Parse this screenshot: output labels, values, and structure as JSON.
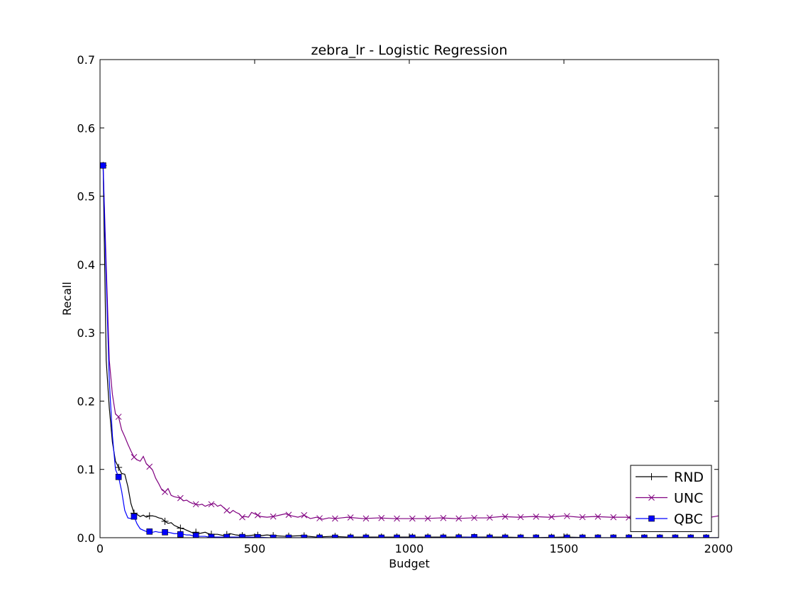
{
  "chart_data": {
    "type": "line",
    "title": "zebra_lr - Logistic Regression",
    "xlabel": "Budget",
    "ylabel": "Recall",
    "xlim": [
      0,
      2000
    ],
    "ylim": [
      0,
      0.7
    ],
    "x_ticks": [
      "0",
      "500",
      "1000",
      "1500",
      "2000"
    ],
    "y_ticks": [
      "0.0",
      "0.1",
      "0.2",
      "0.3",
      "0.4",
      "0.5",
      "0.6",
      "0.7"
    ],
    "grid": false,
    "legend_position": "lower-right",
    "series": [
      {
        "name": "RND",
        "color": "#000000",
        "marker": "plus",
        "x": [
          10,
          20,
          30,
          40,
          50,
          60,
          70,
          80,
          90,
          100,
          110,
          120,
          130,
          140,
          150,
          160,
          170,
          180,
          190,
          200,
          210,
          220,
          230,
          240,
          250,
          260,
          270,
          280,
          290,
          300,
          310,
          320,
          330,
          340,
          350,
          360,
          380,
          400,
          420,
          440,
          460,
          480,
          500,
          520,
          540,
          560,
          600,
          650,
          700,
          750,
          800,
          900,
          1000,
          1100,
          1200,
          1300,
          1400,
          1500,
          1600,
          1700,
          1800,
          1900,
          2000
        ],
        "values": [
          0.545,
          0.26,
          0.19,
          0.14,
          0.112,
          0.103,
          0.094,
          0.093,
          0.075,
          0.05,
          0.036,
          0.034,
          0.031,
          0.033,
          0.03,
          0.032,
          0.032,
          0.031,
          0.029,
          0.028,
          0.024,
          0.021,
          0.022,
          0.018,
          0.016,
          0.014,
          0.013,
          0.011,
          0.009,
          0.007,
          0.008,
          0.006,
          0.007,
          0.008,
          0.006,
          0.005,
          0.005,
          0.003,
          0.006,
          0.004,
          0.003,
          0.003,
          0.004,
          0.003,
          0.004,
          0.003,
          0.002,
          0.003,
          0.001,
          0.002,
          0.001,
          0.001,
          0.001,
          0.001,
          0.001,
          0.001,
          0.0,
          0.001,
          0.0,
          0.0,
          0.0,
          0.0,
          0.0
        ]
      },
      {
        "name": "UNC",
        "color": "#800080",
        "marker": "x",
        "x": [
          10,
          20,
          30,
          40,
          50,
          60,
          70,
          80,
          90,
          100,
          110,
          120,
          130,
          140,
          150,
          160,
          170,
          180,
          190,
          200,
          210,
          220,
          230,
          240,
          250,
          260,
          270,
          280,
          290,
          300,
          310,
          320,
          330,
          340,
          350,
          360,
          370,
          380,
          390,
          400,
          410,
          420,
          430,
          440,
          450,
          460,
          470,
          480,
          490,
          500,
          520,
          540,
          560,
          580,
          600,
          620,
          640,
          660,
          680,
          700,
          720,
          740,
          760,
          780,
          800,
          850,
          900,
          950,
          1000,
          1050,
          1100,
          1150,
          1200,
          1250,
          1300,
          1350,
          1400,
          1450,
          1500,
          1550,
          1600,
          1650,
          1700,
          1750,
          1800,
          1850,
          1900,
          1950,
          2000
        ],
        "values": [
          0.545,
          0.4,
          0.26,
          0.21,
          0.181,
          0.177,
          0.158,
          0.148,
          0.137,
          0.127,
          0.118,
          0.114,
          0.112,
          0.119,
          0.108,
          0.104,
          0.099,
          0.087,
          0.079,
          0.07,
          0.067,
          0.072,
          0.062,
          0.06,
          0.059,
          0.058,
          0.054,
          0.055,
          0.052,
          0.05,
          0.049,
          0.048,
          0.049,
          0.046,
          0.048,
          0.049,
          0.05,
          0.046,
          0.048,
          0.044,
          0.04,
          0.036,
          0.04,
          0.037,
          0.035,
          0.03,
          0.031,
          0.03,
          0.037,
          0.035,
          0.031,
          0.03,
          0.031,
          0.033,
          0.035,
          0.032,
          0.03,
          0.033,
          0.028,
          0.03,
          0.027,
          0.029,
          0.028,
          0.029,
          0.03,
          0.028,
          0.029,
          0.028,
          0.028,
          0.028,
          0.029,
          0.028,
          0.029,
          0.029,
          0.031,
          0.03,
          0.031,
          0.03,
          0.032,
          0.03,
          0.031,
          0.03,
          0.03,
          0.028,
          0.029,
          0.028,
          0.029,
          0.028,
          0.032
        ]
      },
      {
        "name": "QBC",
        "color": "#0000ff",
        "marker": "square",
        "x": [
          10,
          20,
          30,
          40,
          50,
          60,
          70,
          80,
          90,
          100,
          110,
          120,
          130,
          140,
          150,
          160,
          170,
          180,
          190,
          200,
          210,
          220,
          230,
          240,
          250,
          260,
          270,
          280,
          290,
          300,
          310,
          320,
          330,
          340,
          350,
          360,
          380,
          400,
          450,
          500,
          550,
          600,
          650,
          700,
          750,
          800,
          850,
          900,
          950,
          1000,
          1050,
          1100,
          1150,
          1200,
          1250,
          1300,
          1350,
          1400,
          1450,
          1500,
          1550,
          1600,
          1650,
          1700,
          1750,
          1800,
          1850,
          1900,
          1950,
          2000
        ],
        "values": [
          0.545,
          0.38,
          0.23,
          0.15,
          0.1,
          0.089,
          0.068,
          0.04,
          0.029,
          0.028,
          0.031,
          0.02,
          0.013,
          0.011,
          0.009,
          0.009,
          0.008,
          0.009,
          0.008,
          0.008,
          0.008,
          0.008,
          0.007,
          0.006,
          0.006,
          0.005,
          0.005,
          0.004,
          0.004,
          0.003,
          0.003,
          0.002,
          0.002,
          0.002,
          0.001,
          0.001,
          0.001,
          0.001,
          0.001,
          0.001,
          0.0,
          0.0,
          0.0,
          0.0,
          0.0,
          0.0,
          0.0,
          0.0,
          0.0,
          0.0,
          0.0,
          0.0,
          0.0,
          0.001,
          0.0,
          0.0,
          0.0,
          0.0,
          0.0,
          0.0,
          0.0,
          0.0,
          0.0,
          0.0,
          0.0,
          0.0,
          0.0,
          0.0,
          0.0,
          0.0
        ]
      }
    ],
    "marker_x": {
      "RND": [
        10,
        60,
        110,
        160,
        210,
        260,
        310,
        360,
        410,
        460,
        510,
        560,
        610,
        660,
        710,
        760,
        810,
        860,
        910,
        960,
        1010,
        1060,
        1110,
        1160,
        1210,
        1260,
        1310,
        1360,
        1410,
        1460,
        1510,
        1560,
        1610,
        1660,
        1710,
        1760,
        1810,
        1860,
        1910,
        1960
      ],
      "UNC": [
        10,
        60,
        110,
        160,
        210,
        260,
        310,
        360,
        410,
        460,
        510,
        560,
        610,
        660,
        710,
        760,
        810,
        860,
        910,
        960,
        1010,
        1060,
        1110,
        1160,
        1210,
        1260,
        1310,
        1360,
        1410,
        1460,
        1510,
        1560,
        1610,
        1660,
        1710,
        1760,
        1810,
        1860,
        1910,
        1960
      ],
      "QBC": [
        10,
        60,
        110,
        160,
        210,
        260,
        310,
        360,
        410,
        460,
        510,
        560,
        610,
        660,
        710,
        760,
        810,
        860,
        910,
        960,
        1010,
        1060,
        1110,
        1160,
        1210,
        1260,
        1310,
        1360,
        1410,
        1460,
        1510,
        1560,
        1610,
        1660,
        1710,
        1760,
        1810,
        1860,
        1910,
        1960
      ]
    }
  }
}
